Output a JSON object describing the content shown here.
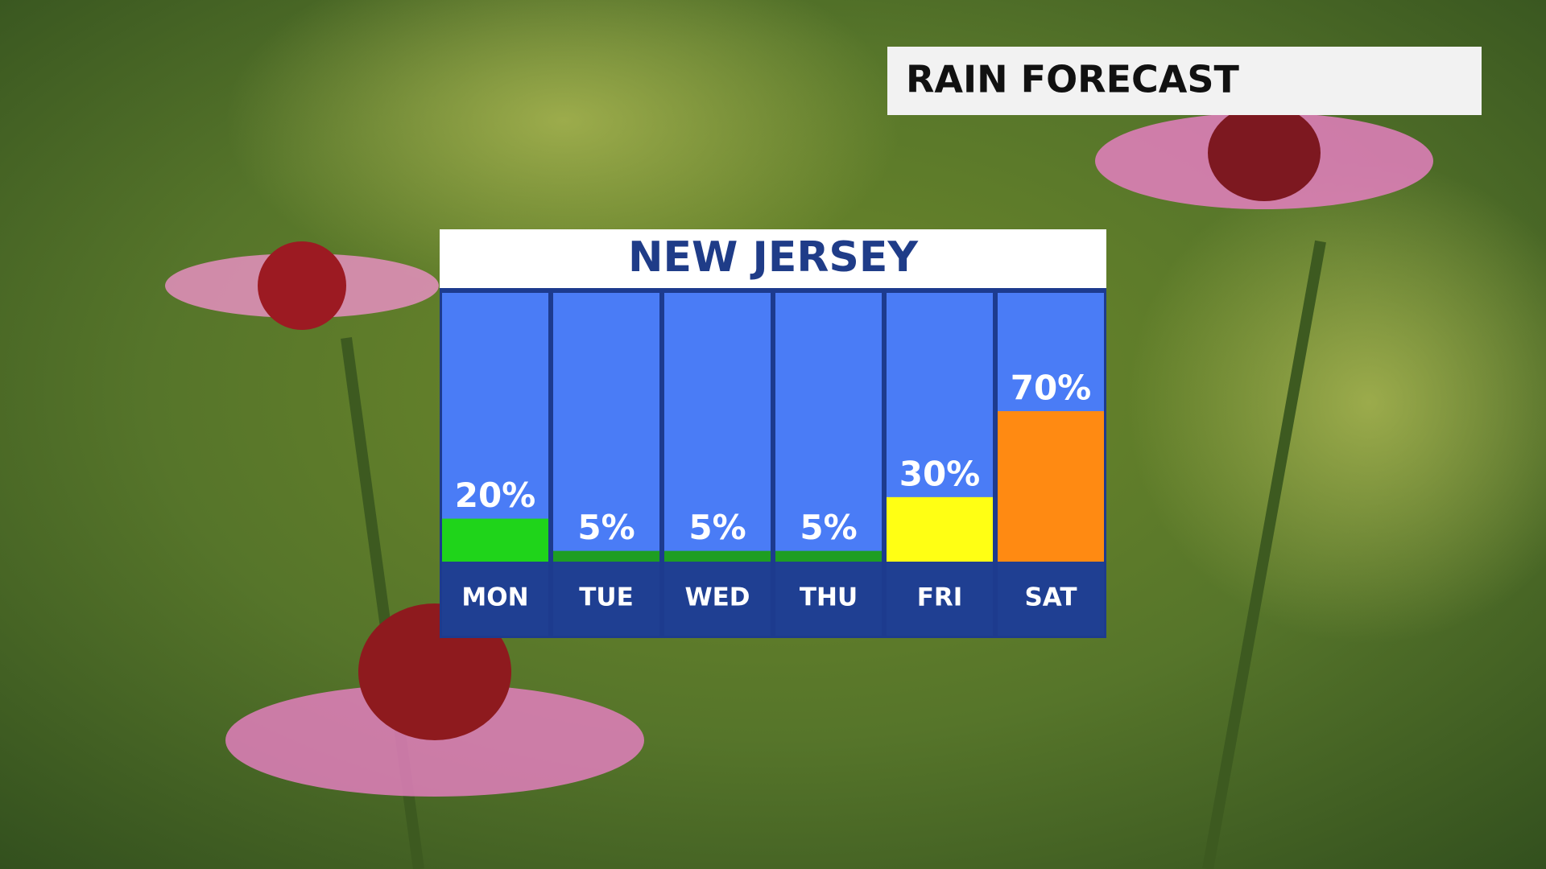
{
  "header": {
    "title": "RAIN FORECAST"
  },
  "chart_data": {
    "type": "bar",
    "title": "NEW JERSEY",
    "categories": [
      "MON",
      "TUE",
      "WED",
      "THU",
      "FRI",
      "SAT"
    ],
    "values": [
      20,
      5,
      5,
      5,
      30,
      70
    ],
    "value_labels": [
      "20%",
      "5%",
      "5%",
      "5%",
      "30%",
      "70%"
    ],
    "colors": [
      "#1fd41a",
      "#1e9e22",
      "#1e9e22",
      "#1e9e22",
      "#ffff14",
      "#ff8a12"
    ],
    "ylim": [
      0,
      125
    ]
  }
}
